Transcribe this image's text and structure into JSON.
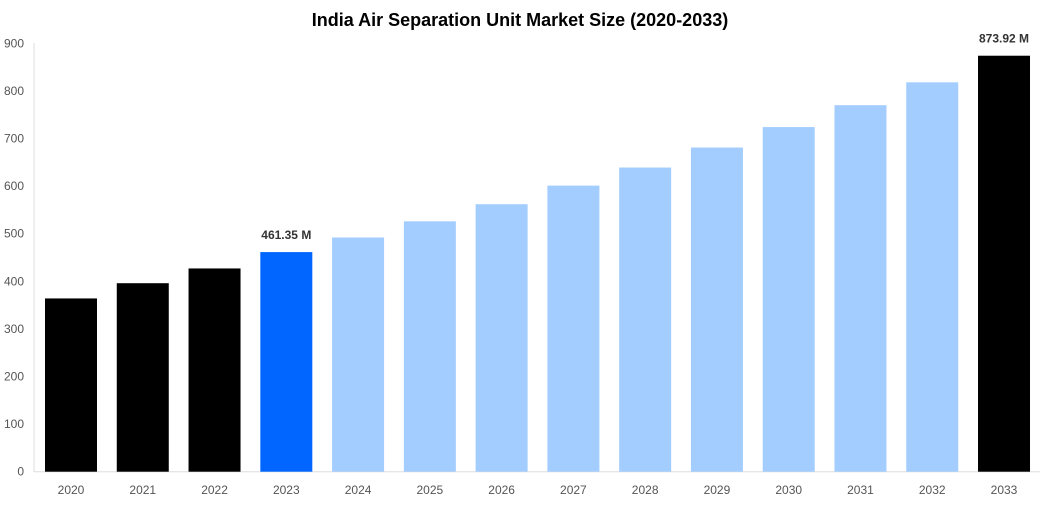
{
  "chart_data": {
    "type": "bar",
    "title": "India Air Separation Unit Market Size (2020-2033)",
    "xlabel": "",
    "ylabel": "",
    "ylim": [
      0,
      900
    ],
    "yticks": [
      "0",
      "100",
      "200",
      "300",
      "400",
      "500",
      "600",
      "700",
      "800",
      "900"
    ],
    "grid": false,
    "categories": [
      "2020",
      "2021",
      "2022",
      "2023",
      "2024",
      "2025",
      "2026",
      "2027",
      "2028",
      "2029",
      "2030",
      "2031",
      "2032",
      "2033"
    ],
    "values": [
      364,
      396,
      427,
      461.35,
      492,
      526,
      562,
      601,
      639,
      681,
      724,
      770,
      818,
      873.92
    ],
    "colors": [
      "#000000",
      "#000000",
      "#000000",
      "#0066ff",
      "#a3cdff",
      "#a3cdff",
      "#a3cdff",
      "#a3cdff",
      "#a3cdff",
      "#a3cdff",
      "#a3cdff",
      "#a3cdff",
      "#a3cdff",
      "#000000"
    ],
    "data_labels": [
      {
        "category": "2023",
        "text": "461.35 M"
      },
      {
        "category": "2033",
        "text": "873.92 M"
      }
    ]
  }
}
